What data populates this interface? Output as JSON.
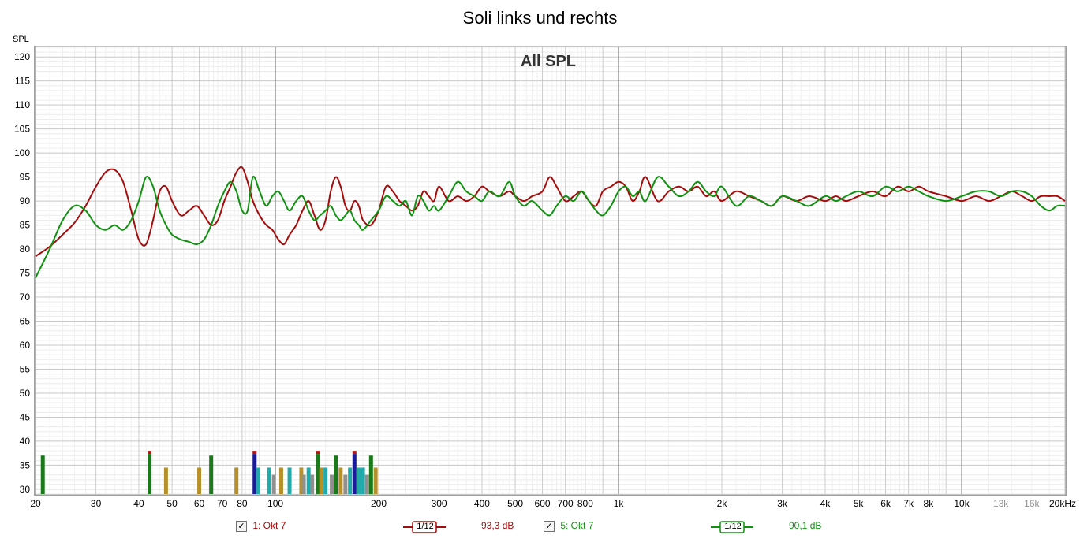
{
  "title": "Soli links und rechts",
  "chart_data": {
    "type": "line",
    "title": "Soli links und rechts",
    "subtitle": "All SPL",
    "ylabel": "SPL",
    "xlabel": "",
    "x_scale": "log",
    "xlim": [
      20,
      20000
    ],
    "ylim": [
      29,
      122
    ],
    "grid": true,
    "y_ticks": [
      30,
      35,
      40,
      45,
      50,
      55,
      60,
      65,
      70,
      75,
      80,
      85,
      90,
      95,
      100,
      105,
      110,
      115,
      120
    ],
    "x_ticks": [
      {
        "v": 20,
        "l": "20"
      },
      {
        "v": 30,
        "l": "30"
      },
      {
        "v": 40,
        "l": "40"
      },
      {
        "v": 50,
        "l": "50"
      },
      {
        "v": 60,
        "l": "60"
      },
      {
        "v": 70,
        "l": "70"
      },
      {
        "v": 80,
        "l": "80"
      },
      {
        "v": 100,
        "l": "100"
      },
      {
        "v": 200,
        "l": "200"
      },
      {
        "v": 300,
        "l": "300"
      },
      {
        "v": 400,
        "l": "400"
      },
      {
        "v": 500,
        "l": "500"
      },
      {
        "v": 600,
        "l": "600"
      },
      {
        "v": 700,
        "l": "700"
      },
      {
        "v": 800,
        "l": "800"
      },
      {
        "v": 1000,
        "l": "1k"
      },
      {
        "v": 2000,
        "l": "2k"
      },
      {
        "v": 3000,
        "l": "3k"
      },
      {
        "v": 4000,
        "l": "4k"
      },
      {
        "v": 5000,
        "l": "5k"
      },
      {
        "v": 6000,
        "l": "6k"
      },
      {
        "v": 7000,
        "l": "7k"
      },
      {
        "v": 8000,
        "l": "8k"
      },
      {
        "v": 10000,
        "l": "10k"
      },
      {
        "v": 13000,
        "l": "13k"
      },
      {
        "v": 16000,
        "l": "16k"
      },
      {
        "v": 20000,
        "l": "20kHz"
      }
    ],
    "series": [
      {
        "name": "1: Okt 7",
        "color": "#a50d0d",
        "x": [
          20,
          22,
          24,
          26,
          28,
          30,
          32,
          34,
          36,
          38,
          40,
          42,
          44,
          46,
          48,
          50,
          53,
          56,
          59,
          62,
          65,
          68,
          71,
          74,
          77,
          80,
          83,
          86,
          90,
          94,
          98,
          102,
          106,
          110,
          115,
          120,
          125,
          130,
          135,
          140,
          145,
          150,
          155,
          160,
          165,
          170,
          175,
          180,
          190,
          200,
          210,
          220,
          230,
          240,
          250,
          260,
          270,
          280,
          290,
          300,
          320,
          340,
          360,
          380,
          400,
          420,
          450,
          480,
          500,
          530,
          560,
          600,
          630,
          660,
          700,
          740,
          780,
          820,
          860,
          900,
          950,
          1000,
          1050,
          1100,
          1150,
          1200,
          1300,
          1400,
          1500,
          1600,
          1700,
          1800,
          1900,
          2000,
          2200,
          2400,
          2600,
          2800,
          3000,
          3300,
          3600,
          4000,
          4300,
          4600,
          5000,
          5500,
          6000,
          6500,
          7000,
          7500,
          8000,
          9000,
          10000,
          11000,
          12000,
          13000,
          14000,
          15000,
          16000,
          17000,
          18000,
          19000,
          20000
        ],
        "y": [
          78.5,
          80.5,
          83,
          85.5,
          89,
          93,
          96,
          96.5,
          94,
          88,
          82,
          81,
          86,
          92,
          93,
          90,
          87,
          88,
          89,
          87,
          85,
          86,
          90,
          93,
          96,
          97,
          94,
          90,
          87,
          85,
          84,
          82,
          81,
          83,
          85,
          88,
          90,
          87,
          84,
          86,
          92,
          95,
          93,
          89,
          88,
          90,
          89,
          86,
          85,
          88,
          93,
          92,
          90,
          89,
          88,
          89,
          92,
          91,
          90,
          93,
          90,
          91,
          90,
          91,
          93,
          92,
          91,
          92,
          91,
          90,
          91,
          92,
          95,
          93,
          90,
          91,
          92,
          90,
          89,
          92,
          93,
          94,
          93,
          90,
          92,
          95,
          90,
          92,
          93,
          92,
          93,
          91,
          92,
          90,
          92,
          91,
          90,
          89,
          91,
          90,
          91,
          90,
          91,
          90,
          91,
          92,
          91,
          93,
          92,
          93,
          92,
          91,
          90,
          91,
          90,
          91,
          92,
          91,
          90,
          91,
          91,
          91,
          90
        ]
      },
      {
        "name": "5: Okt 7",
        "color": "#119111",
        "x": [
          20,
          22,
          24,
          26,
          28,
          30,
          32,
          34,
          36,
          38,
          40,
          42,
          44,
          46,
          48,
          50,
          53,
          56,
          59,
          62,
          65,
          68,
          71,
          74,
          77,
          80,
          83,
          86,
          90,
          94,
          98,
          102,
          106,
          110,
          115,
          120,
          125,
          130,
          135,
          140,
          145,
          150,
          155,
          160,
          165,
          170,
          175,
          180,
          190,
          200,
          210,
          220,
          230,
          240,
          250,
          260,
          270,
          280,
          290,
          300,
          320,
          340,
          360,
          380,
          400,
          420,
          450,
          480,
          500,
          530,
          560,
          600,
          630,
          660,
          700,
          740,
          780,
          820,
          860,
          900,
          950,
          1000,
          1050,
          1100,
          1150,
          1200,
          1300,
          1400,
          1500,
          1600,
          1700,
          1800,
          1900,
          2000,
          2200,
          2400,
          2600,
          2800,
          3000,
          3300,
          3600,
          4000,
          4300,
          4600,
          5000,
          5500,
          6000,
          6500,
          7000,
          7500,
          8000,
          9000,
          10000,
          11000,
          12000,
          13000,
          14000,
          15000,
          16000,
          17000,
          18000,
          19000,
          20000
        ],
        "y": [
          74,
          80,
          86,
          89,
          88,
          85,
          84,
          85,
          84,
          86,
          90,
          95,
          93,
          88,
          85,
          83,
          82,
          81.5,
          81,
          82,
          85,
          89,
          92,
          94,
          92,
          88,
          88,
          95,
          92,
          89,
          91,
          92,
          90,
          88,
          90,
          91,
          88,
          86,
          87,
          88,
          89,
          87,
          86,
          87,
          88,
          86,
          85,
          84,
          86,
          88,
          91,
          90,
          89,
          90,
          87,
          91,
          90,
          88,
          89,
          88,
          91,
          94,
          92,
          91,
          90,
          92,
          91,
          94,
          91,
          89,
          90,
          88,
          87,
          89,
          91,
          90,
          92,
          90,
          88,
          87,
          89,
          92,
          93,
          91,
          92,
          90,
          95,
          93,
          91,
          92,
          94,
          92,
          91,
          93,
          89,
          91,
          90,
          89,
          91,
          90,
          89,
          91,
          90,
          91,
          92,
          91,
          93,
          92,
          93,
          92,
          91,
          90,
          91,
          92,
          92,
          91,
          92,
          92,
          91,
          89,
          88,
          89,
          89
        ]
      }
    ],
    "histogram_bars": [
      {
        "x": 21,
        "top": 37,
        "colors": [
          "#1a7a1a"
        ]
      },
      {
        "x": 43,
        "top": 38,
        "colors": [
          "#1a7a1a",
          "#b91414"
        ]
      },
      {
        "x": 48,
        "top": 34.5,
        "colors": [
          "#b8902a"
        ]
      },
      {
        "x": 60,
        "top": 34.5,
        "colors": [
          "#b8902a"
        ]
      },
      {
        "x": 65,
        "top": 37,
        "colors": [
          "#1a7a1a"
        ]
      },
      {
        "x": 77,
        "top": 34.5,
        "colors": [
          "#b8902a"
        ]
      },
      {
        "x": 87,
        "top": 38,
        "colors": [
          "#1a1a9a",
          "#b91414"
        ]
      },
      {
        "x": 89,
        "top": 34.5,
        "colors": [
          "#22aaaa"
        ]
      },
      {
        "x": 96,
        "top": 34.5,
        "colors": [
          "#22aaaa"
        ]
      },
      {
        "x": 99,
        "top": 33,
        "colors": [
          "#909090"
        ]
      },
      {
        "x": 104,
        "top": 34.5,
        "colors": [
          "#b8902a"
        ]
      },
      {
        "x": 110,
        "top": 34.5,
        "colors": [
          "#22aaaa"
        ]
      },
      {
        "x": 119,
        "top": 34.5,
        "colors": [
          "#b8902a"
        ]
      },
      {
        "x": 121,
        "top": 33,
        "colors": [
          "#909090"
        ]
      },
      {
        "x": 125,
        "top": 34.5,
        "colors": [
          "#22aaaa"
        ]
      },
      {
        "x": 128,
        "top": 33,
        "colors": [
          "#909090"
        ]
      },
      {
        "x": 133,
        "top": 38,
        "colors": [
          "#1a7a1a",
          "#b91414"
        ]
      },
      {
        "x": 136,
        "top": 34.5,
        "colors": [
          "#b8902a"
        ]
      },
      {
        "x": 140,
        "top": 34.5,
        "colors": [
          "#22aaaa"
        ]
      },
      {
        "x": 146,
        "top": 33,
        "colors": [
          "#909090"
        ]
      },
      {
        "x": 150,
        "top": 37,
        "colors": [
          "#1a7a1a"
        ]
      },
      {
        "x": 155,
        "top": 34.5,
        "colors": [
          "#b8902a"
        ]
      },
      {
        "x": 160,
        "top": 33,
        "colors": [
          "#909090"
        ]
      },
      {
        "x": 165,
        "top": 34.5,
        "colors": [
          "#22aaaa"
        ]
      },
      {
        "x": 170,
        "top": 38,
        "colors": [
          "#1a1a9a",
          "#b91414"
        ]
      },
      {
        "x": 175,
        "top": 34.5,
        "colors": [
          "#22aaaa"
        ]
      },
      {
        "x": 180,
        "top": 34.5,
        "colors": [
          "#22aaaa"
        ]
      },
      {
        "x": 185,
        "top": 33,
        "colors": [
          "#909090"
        ]
      },
      {
        "x": 190,
        "top": 37,
        "colors": [
          "#1a7a1a"
        ]
      },
      {
        "x": 196,
        "top": 34.5,
        "colors": [
          "#b8902a"
        ]
      }
    ]
  },
  "legend": {
    "item1": {
      "label": "1: Okt 7",
      "checked": "✓",
      "smoothing": "1/12",
      "value": "93,3 dB",
      "color": "#a50d0d"
    },
    "item2": {
      "label": "5: Okt 7",
      "checked": "✓",
      "smoothing": "1/12",
      "value": "90,1 dB",
      "color": "#119111"
    }
  }
}
